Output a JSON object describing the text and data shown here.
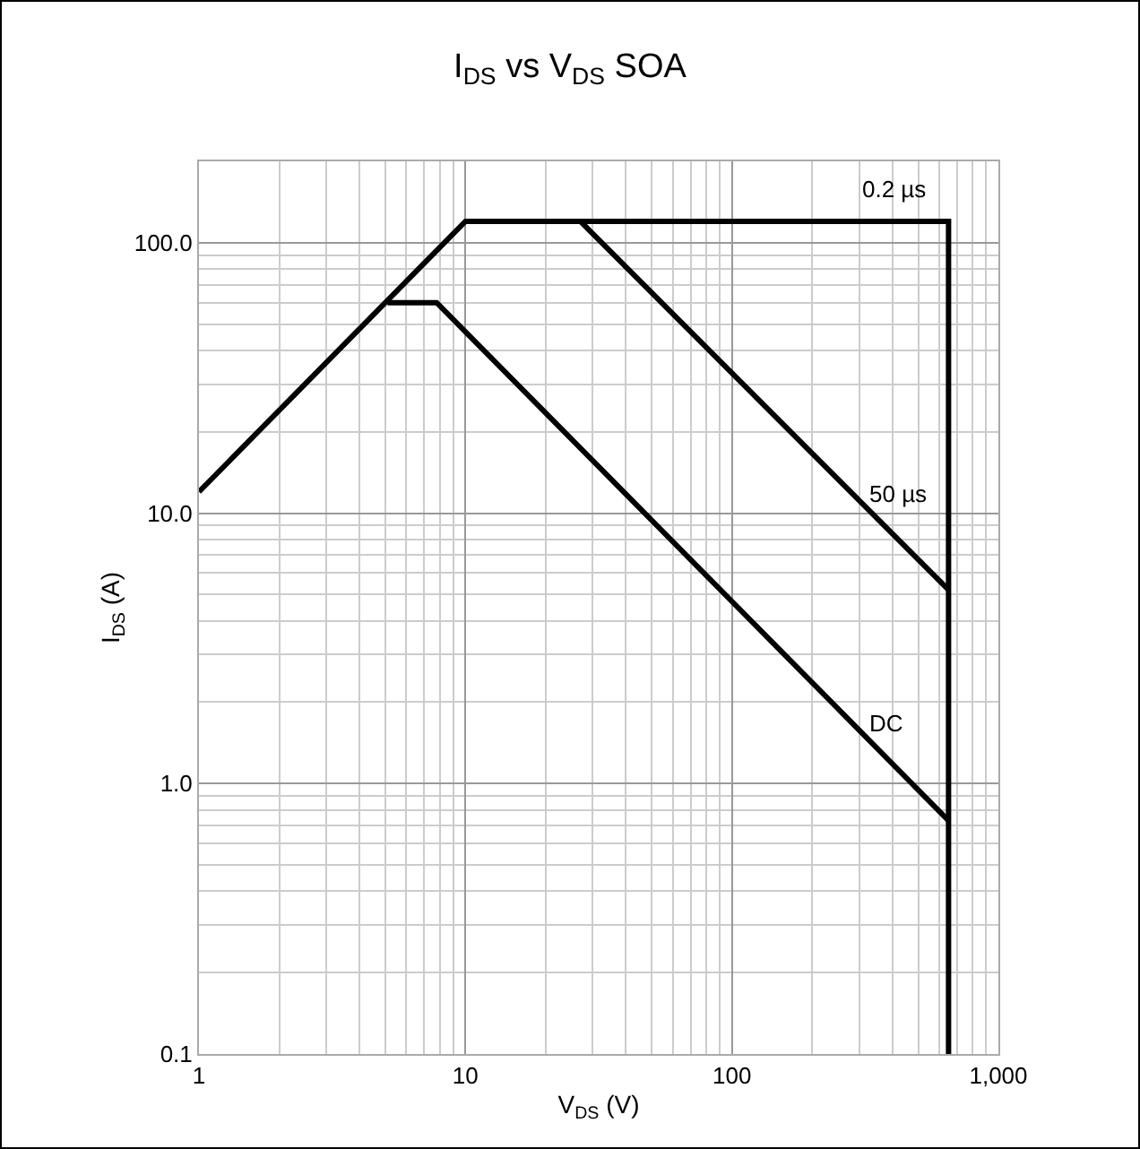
{
  "chart_data": {
    "type": "line",
    "title": "I$_{DS}$ vs V$_{DS}$ SOA",
    "xlabel": "V$_{DS}$ (V)",
    "ylabel": "I$_{DS}$ (A)",
    "series": [
      {
        "name": "0.2 µs",
        "color": "#000000",
        "x": [
          1,
          10,
          650,
          650
        ],
        "values": [
          12,
          120,
          120,
          0.1
        ]
      },
      {
        "name": "50 µs",
        "color": "#000000",
        "x": [
          27,
          650
        ],
        "values": [
          120,
          5.2
        ]
      },
      {
        "name": "DC",
        "color": "#000000",
        "x": [
          5.1,
          7.8,
          650
        ],
        "values": [
          60,
          60,
          0.73
        ]
      }
    ],
    "log": "xy",
    "xlim": [
      1,
      1000
    ],
    "ylim": [
      0.1,
      200
    ],
    "xticks": [
      1,
      10,
      100,
      {
        "value": 1000,
        "label": "1,000"
      }
    ],
    "yticks": [
      {
        "value": 0.1,
        "label": "0.1"
      },
      {
        "value": 1,
        "label": "1.0"
      },
      {
        "value": 10,
        "label": "10.0"
      },
      {
        "value": 100,
        "label": "100.0"
      }
    ],
    "grid": true,
    "legend": false,
    "marker": "none",
    "line_style": "solid"
  }
}
